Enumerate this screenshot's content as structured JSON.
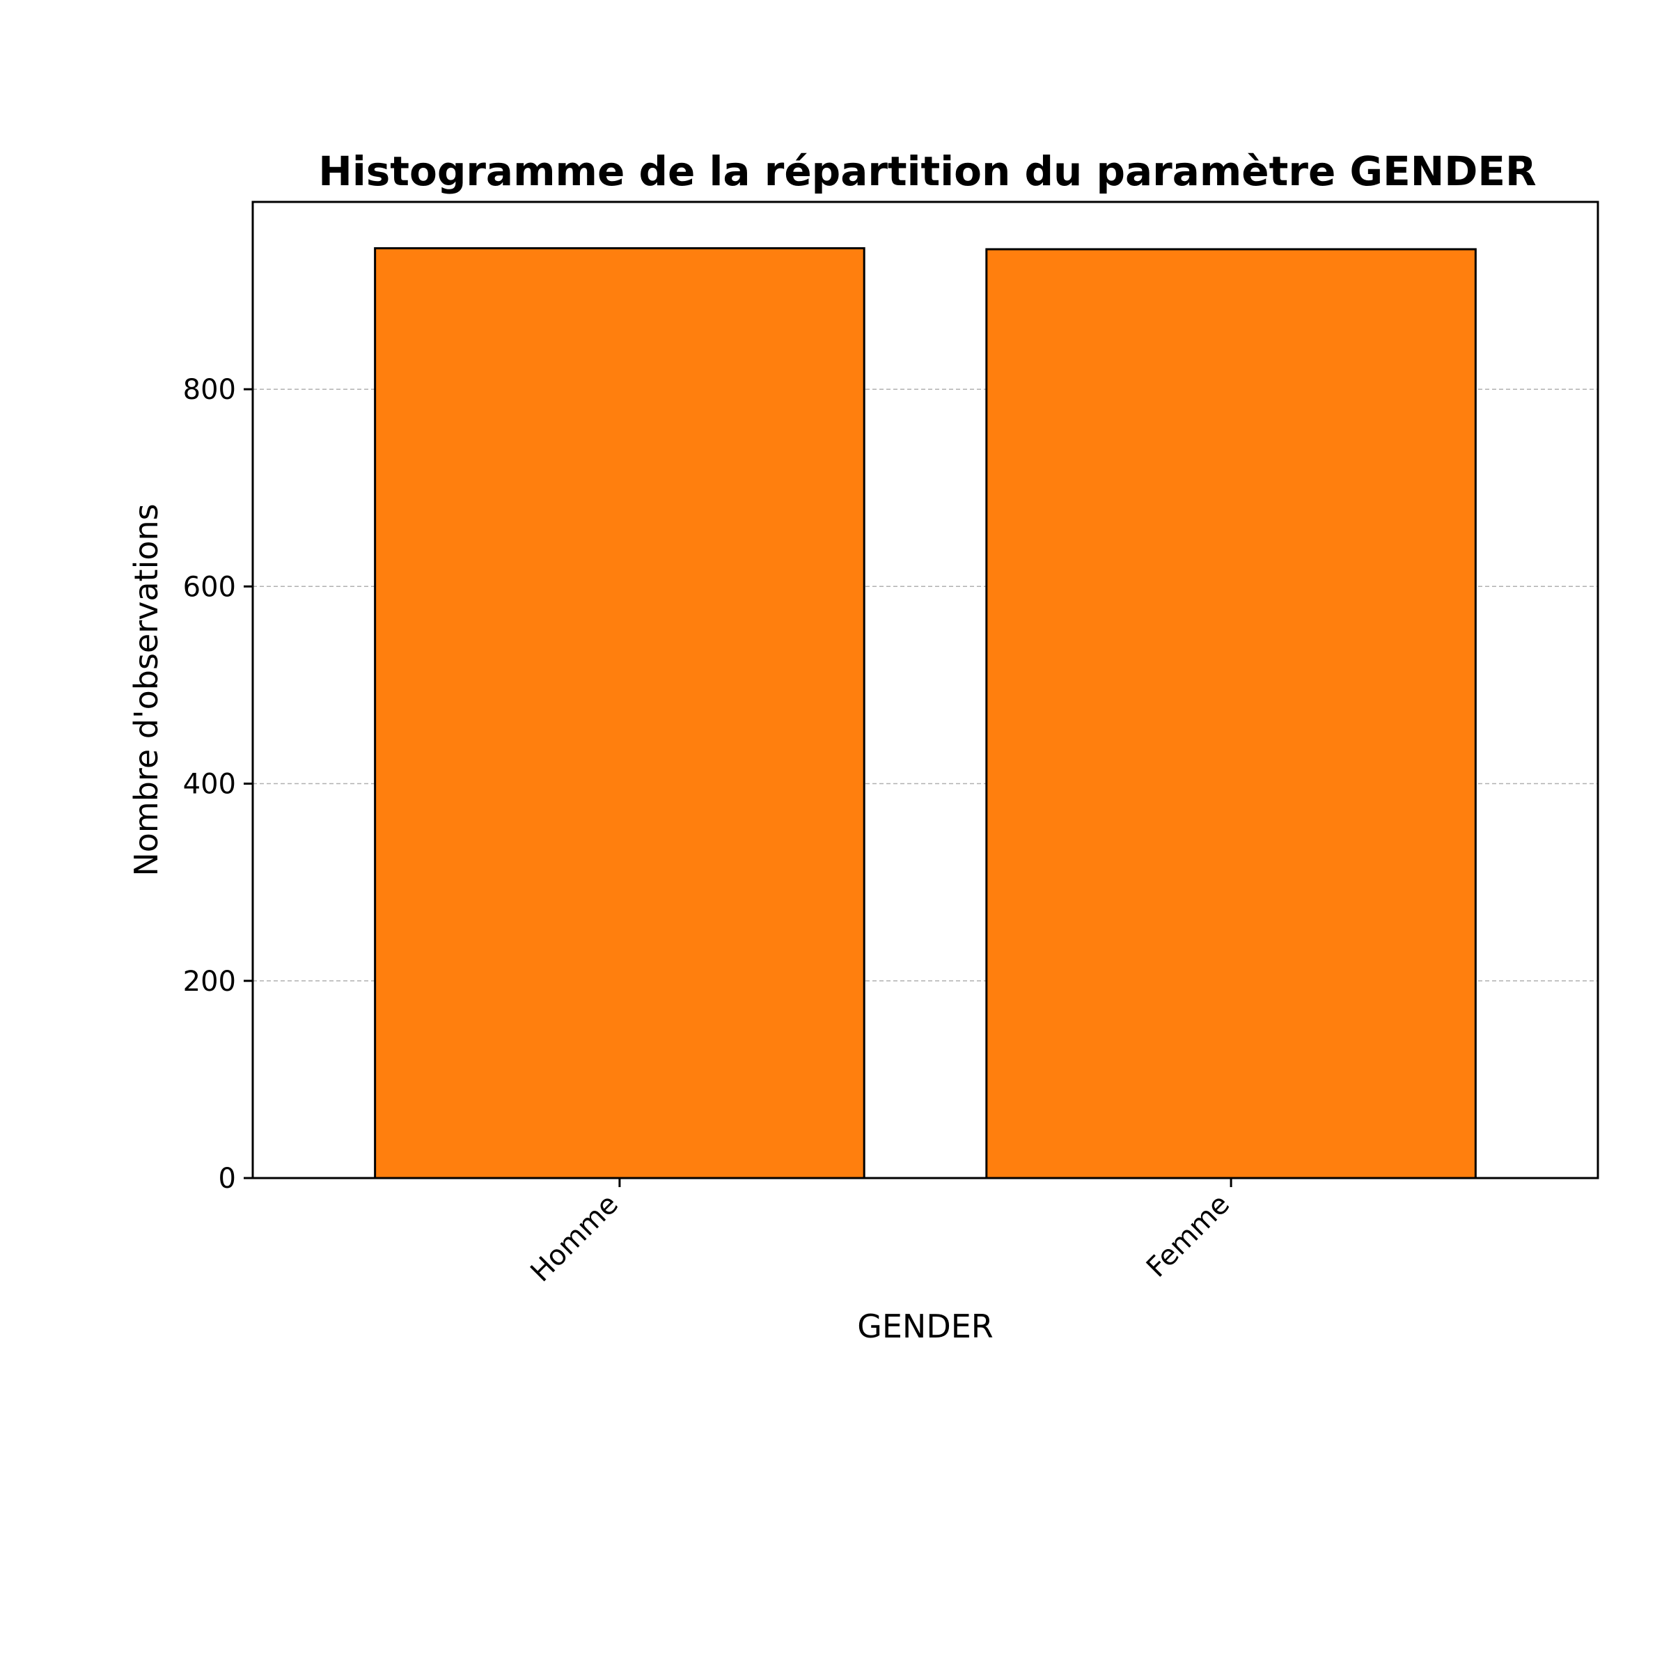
{
  "chart_data": {
    "type": "bar",
    "title": "Histogramme de la répartition du paramètre GENDER",
    "xlabel": "GENDER",
    "ylabel": "Nombre d'observations",
    "categories": [
      "Homme",
      "Femme"
    ],
    "values": [
      943,
      942
    ],
    "ylim": [
      0,
      990
    ],
    "yticks": [
      0,
      200,
      400,
      600,
      800
    ],
    "ytick_labels": [
      "0",
      "200",
      "400",
      "600",
      "800"
    ],
    "grid": "y-dashed",
    "legend": "none",
    "bar_color": "#ff7f0e",
    "edge_color": "#000000",
    "grid_color": "#b0b0b0"
  }
}
